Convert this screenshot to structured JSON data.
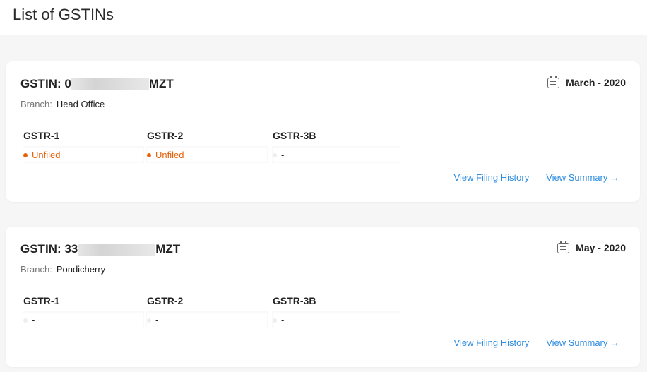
{
  "header": {
    "title": "List of GSTINs"
  },
  "cards": [
    {
      "gstin_label": "GSTIN:",
      "gstin_prefix": "0",
      "gstin_suffix": "MZT",
      "branch_label": "Branch:",
      "branch": "Head Office",
      "period": "March - 2020",
      "returns": [
        {
          "name": "GSTR-1",
          "status": "Unfiled"
        },
        {
          "name": "GSTR-2",
          "status": "Unfiled"
        },
        {
          "name": "GSTR-3B",
          "status": "-"
        }
      ],
      "history_link": "View Filing History",
      "summary_link": "View Summary →"
    },
    {
      "gstin_label": "GSTIN:",
      "gstin_prefix": "33",
      "gstin_suffix": "MZT",
      "branch_label": "Branch:",
      "branch": "Pondicherry",
      "period": "May - 2020",
      "returns": [
        {
          "name": "GSTR-1",
          "status": "-"
        },
        {
          "name": "GSTR-2",
          "status": "-"
        },
        {
          "name": "GSTR-3B",
          "status": "-"
        }
      ],
      "history_link": "View Filing History",
      "summary_link": "View Summary →"
    }
  ],
  "colors": {
    "unfiled": "#e8620c",
    "link": "#2e8de0"
  }
}
